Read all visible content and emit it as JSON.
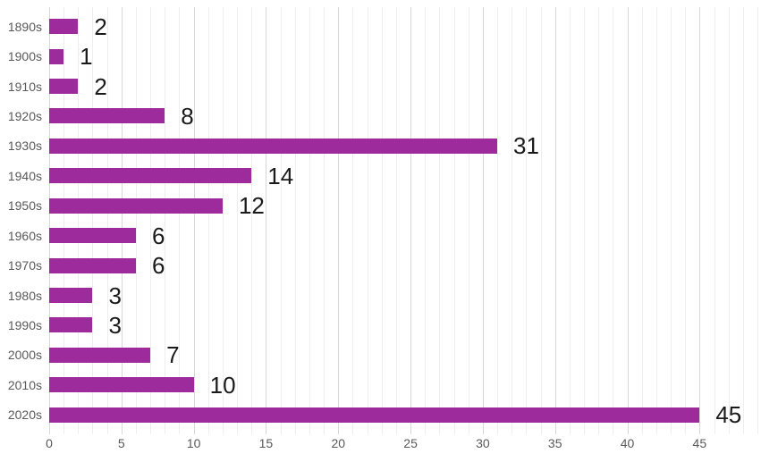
{
  "chart_data": {
    "type": "bar",
    "orientation": "horizontal",
    "title": "",
    "xlabel": "",
    "ylabel": "",
    "categories": [
      "1890s",
      "1900s",
      "1910s",
      "1920s",
      "1930s",
      "1940s",
      "1950s",
      "1960s",
      "1970s",
      "1980s",
      "1990s",
      "2000s",
      "2010s",
      "2020s"
    ],
    "values": [
      2,
      1,
      2,
      8,
      31,
      14,
      12,
      6,
      6,
      3,
      3,
      7,
      10,
      45
    ],
    "x_ticks": [
      0,
      5,
      10,
      15,
      20,
      25,
      30,
      35,
      40,
      45
    ],
    "xlim": [
      0,
      49
    ],
    "grid": {
      "vertical_minor_step": 1,
      "vertical_major_step": 5,
      "horizontal": false
    },
    "legend": "none",
    "data_labels": true,
    "colors": {
      "bar": "#9e2b9b",
      "category_label": "#595959",
      "axis_tick_label": "#595959",
      "value_label": "#1a1a1a",
      "gridline_minor": "#eeeeee",
      "gridline_major": "#d8d8d8",
      "background": "#ffffff"
    }
  }
}
